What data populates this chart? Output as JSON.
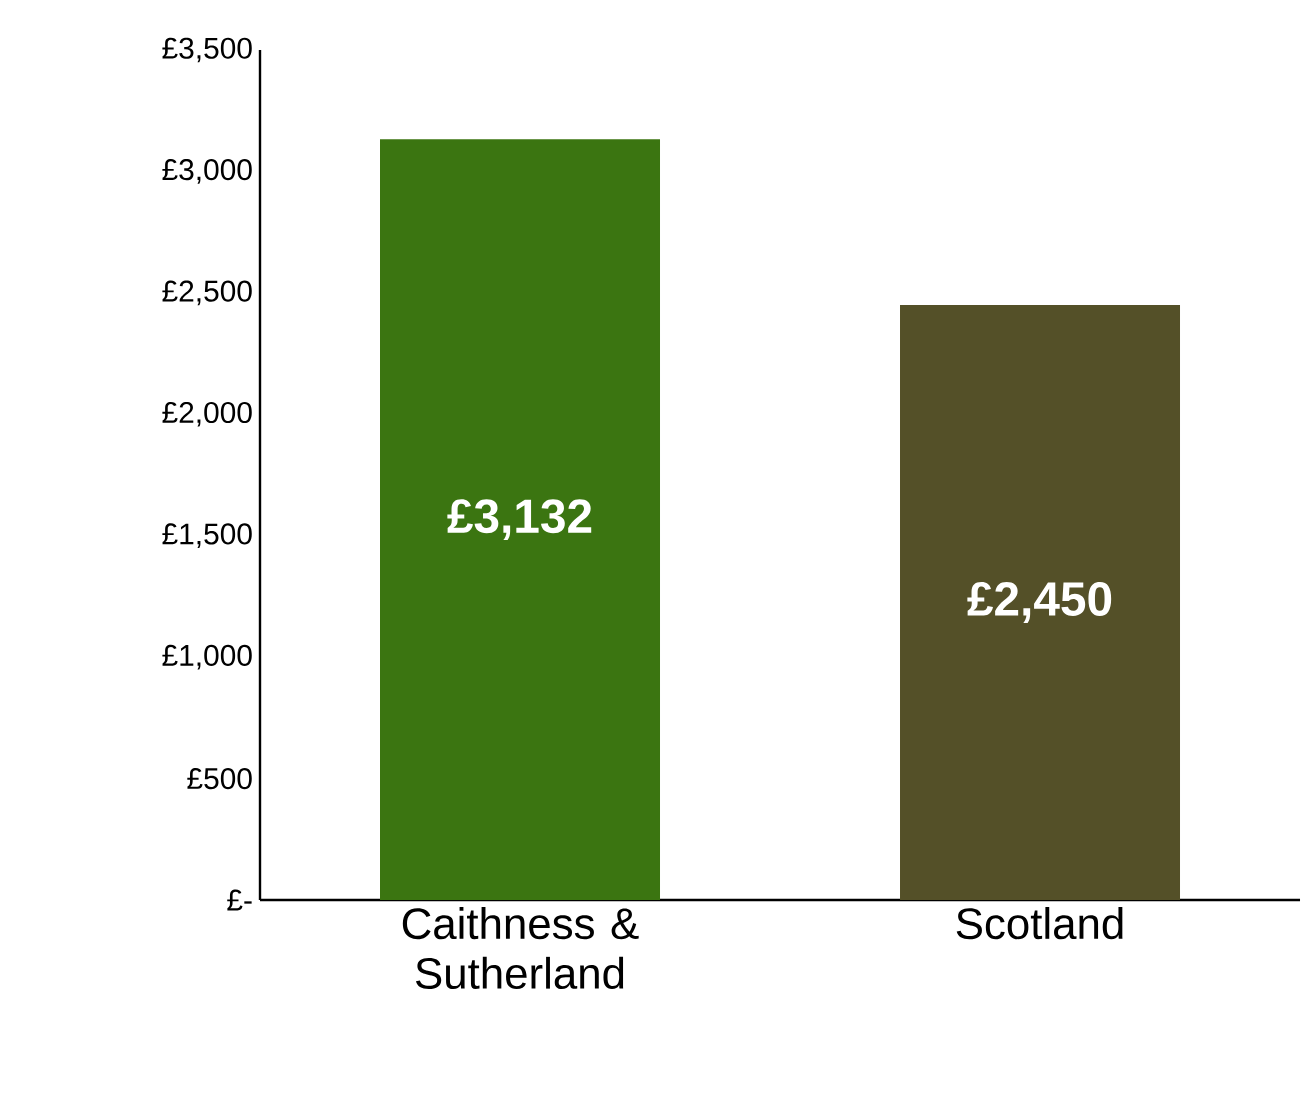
{
  "chart_data": {
    "type": "bar",
    "categories": [
      "Caithness & Sutherland",
      "Scotland"
    ],
    "values": [
      3132,
      2450
    ],
    "colors": [
      "#3b7511",
      "#545028"
    ],
    "value_labels": [
      "£3,132",
      "£2,450"
    ],
    "ylim": [
      0,
      3500
    ],
    "yticks": [
      {
        "value": 0,
        "label": "£-"
      },
      {
        "value": 500,
        "label": "£500"
      },
      {
        "value": 1000,
        "label": "£1,000"
      },
      {
        "value": 1500,
        "label": "£1,500"
      },
      {
        "value": 2000,
        "label": "£2,000"
      },
      {
        "value": 2500,
        "label": "£2,500"
      },
      {
        "value": 3000,
        "label": "£3,000"
      },
      {
        "value": 3500,
        "label": "£3,500"
      }
    ],
    "grid": false
  }
}
